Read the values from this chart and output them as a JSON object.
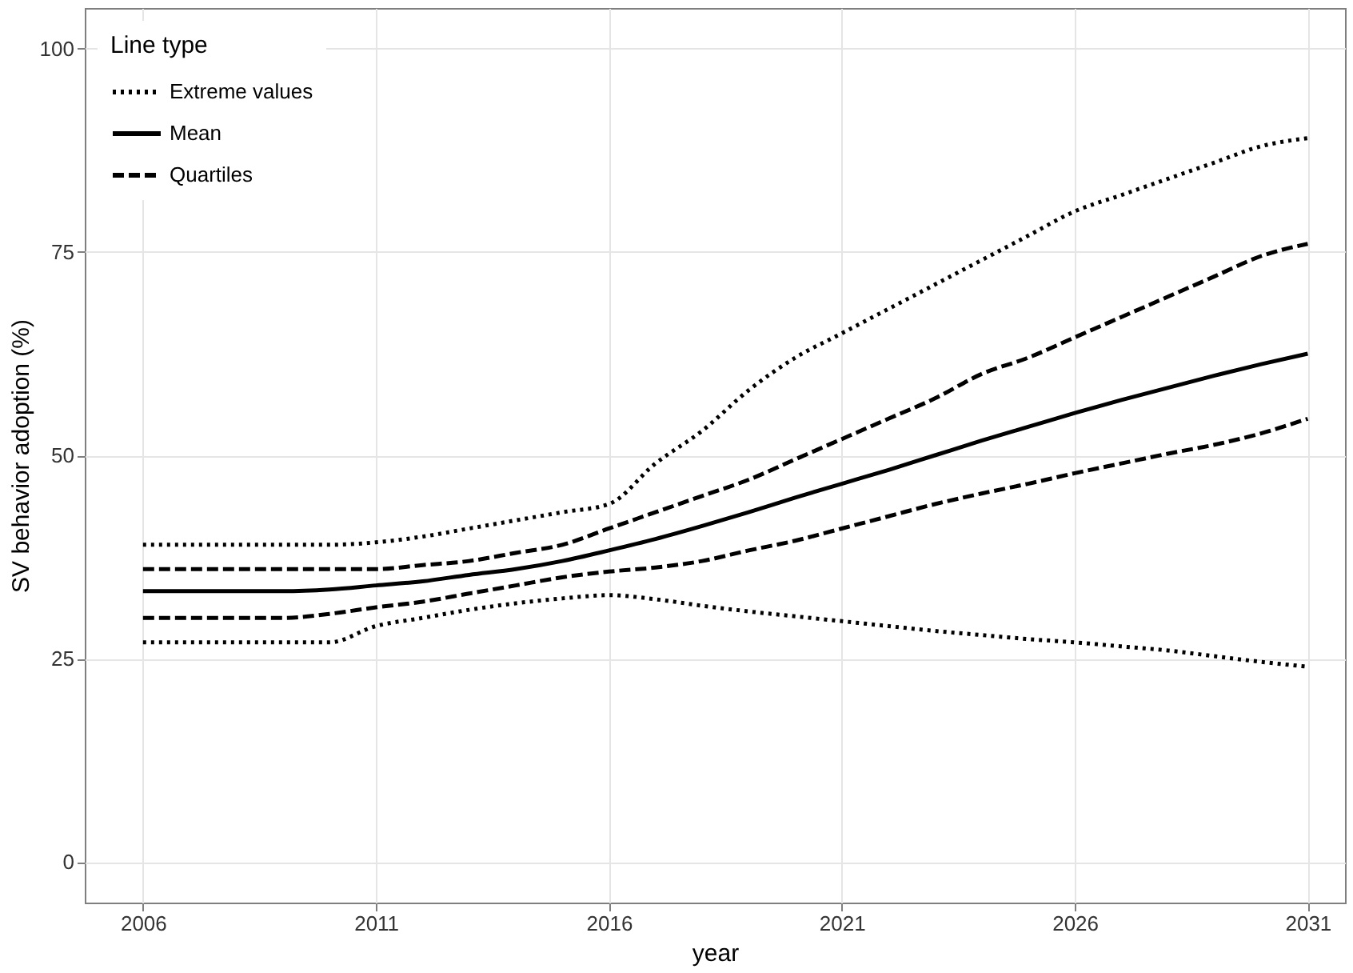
{
  "chart_data": {
    "type": "line",
    "xlabel": "year",
    "ylabel": "SV behavior adoption (%)",
    "legend_title": "Line type",
    "x": [
      2006,
      2007,
      2008,
      2009,
      2010,
      2011,
      2012,
      2013,
      2014,
      2015,
      2016,
      2017,
      2018,
      2019,
      2020,
      2021,
      2022,
      2023,
      2024,
      2025,
      2026,
      2027,
      2028,
      2029,
      2030,
      2031
    ],
    "series": [
      {
        "name": "Extreme values",
        "color": "#000000",
        "line_style": "dotted",
        "values": [
          39,
          39,
          39,
          39,
          39,
          39.3,
          40,
          41,
          42,
          43,
          44,
          49,
          53,
          58,
          62,
          65,
          68,
          71,
          74,
          77,
          80,
          82,
          84,
          86,
          88,
          89
        ]
      },
      {
        "name": "Mean",
        "color": "#000000",
        "line_style": "solid",
        "values": [
          33.3,
          33.3,
          33.3,
          33.3,
          33.5,
          34,
          34.5,
          35.3,
          36,
          37,
          38.3,
          39.7,
          41.3,
          43,
          44.8,
          46.5,
          48.2,
          50,
          51.8,
          53.5,
          55.2,
          56.8,
          58.3,
          59.8,
          61.2,
          62.5
        ]
      },
      {
        "name": "Quartiles",
        "color": "#000000",
        "line_style": "dashed",
        "values": [
          36,
          36,
          36,
          36,
          36,
          36,
          36.5,
          37,
          38,
          39,
          41,
          43,
          45,
          47,
          49.5,
          52,
          54.5,
          57,
          60,
          62,
          64.5,
          67,
          69.5,
          72,
          74.5,
          76
        ]
      },
      {
        "color": "#000000",
        "line_style": "dashed",
        "values": [
          30,
          30,
          30,
          30,
          30.5,
          31.3,
          32,
          33,
          34,
          35,
          35.7,
          36.2,
          37,
          38.3,
          39.5,
          41,
          42.5,
          44,
          45.3,
          46.5,
          47.8,
          49,
          50.2,
          51.3,
          52.7,
          54.5
        ]
      },
      {
        "color": "#000000",
        "line_style": "dotted",
        "values": [
          27,
          27,
          27,
          27,
          27,
          29,
          30,
          31,
          31.8,
          32.4,
          32.8,
          32.3,
          31.5,
          30.8,
          30.2,
          29.6,
          29,
          28.4,
          27.9,
          27.4,
          27,
          26.5,
          26,
          25.3,
          24.6,
          24
        ]
      }
    ],
    "xlim": [
      2004.75,
      2031.8
    ],
    "ylim": [
      -5,
      105
    ],
    "xticks": [
      2006,
      2011,
      2016,
      2021,
      2026,
      2031
    ],
    "yticks": [
      0,
      25,
      50,
      75,
      100
    ],
    "grid": true,
    "legend": "top left"
  }
}
